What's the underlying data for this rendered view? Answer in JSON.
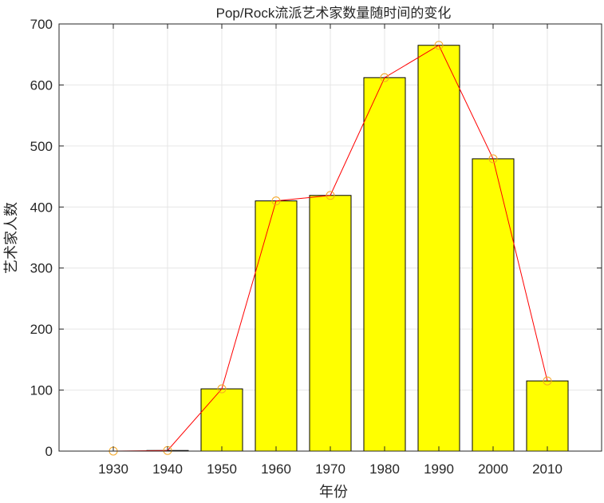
{
  "chart_data": {
    "type": "bar",
    "title": "Pop/Rock流派艺术家数量随时间的变化",
    "xlabel": "年份",
    "ylabel": "艺术家人数",
    "categories": [
      "1930",
      "1940",
      "1950",
      "1960",
      "1970",
      "1980",
      "1990",
      "2000",
      "2010"
    ],
    "values": [
      0,
      1,
      102,
      410,
      419,
      612,
      665,
      479,
      115
    ],
    "ylim": [
      0,
      700
    ],
    "yticks": [
      "0",
      "100",
      "200",
      "300",
      "400",
      "500",
      "600",
      "700"
    ],
    "grid": true,
    "overlay": {
      "type": "line",
      "values": [
        0,
        1,
        102,
        410,
        419,
        612,
        665,
        479,
        115
      ],
      "line_color": "#ff0000",
      "marker": "circle",
      "marker_color": "#f5a623"
    },
    "bar_color": "#ffff00",
    "bar_edge_color": "#000000"
  }
}
